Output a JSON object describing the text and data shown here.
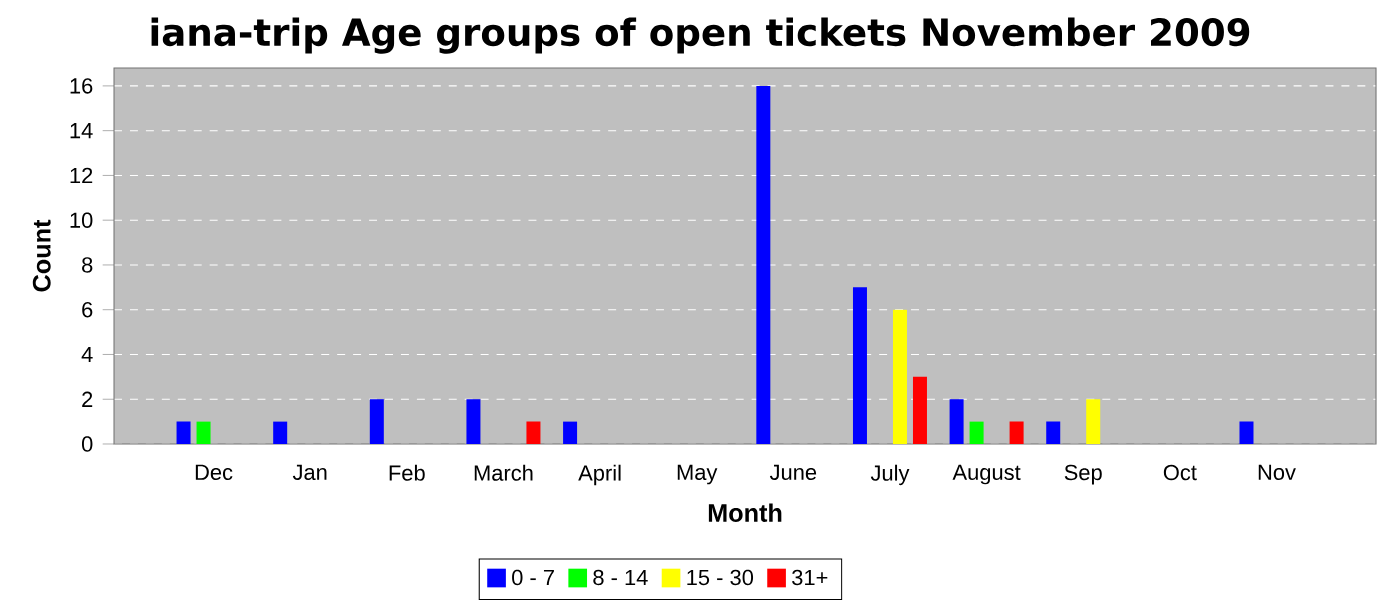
{
  "chart_data": {
    "type": "bar",
    "title": "iana-trip Age groups of open tickets November 2009",
    "xlabel": "Month",
    "ylabel": "Count",
    "categories": [
      "Dec",
      "Jan",
      "Feb",
      "March",
      "April",
      "May",
      "June",
      "July",
      "August",
      "Sep",
      "Oct",
      "Nov"
    ],
    "series": [
      {
        "name": "0 - 7",
        "color": "#0000ff",
        "values": [
          1,
          1,
          2,
          2,
          1,
          0,
          16,
          7,
          2,
          1,
          0,
          1
        ]
      },
      {
        "name": "8 - 14",
        "color": "#00ff00",
        "values": [
          1,
          0,
          0,
          0,
          0,
          0,
          0,
          0,
          1,
          0,
          0,
          0
        ]
      },
      {
        "name": "15 - 30",
        "color": "#ffff00",
        "values": [
          0,
          0,
          0,
          0,
          0,
          0,
          0,
          6,
          0,
          2,
          0,
          0
        ]
      },
      {
        "name": "31+",
        "color": "#ff0000",
        "values": [
          0,
          0,
          0,
          1,
          0,
          0,
          0,
          3,
          1,
          0,
          0,
          0
        ]
      }
    ],
    "ylim": [
      0,
      16.8
    ],
    "yticks": [
      0,
      2,
      4,
      6,
      8,
      10,
      12,
      14,
      16
    ],
    "grid": "y",
    "legend": "bottom"
  }
}
